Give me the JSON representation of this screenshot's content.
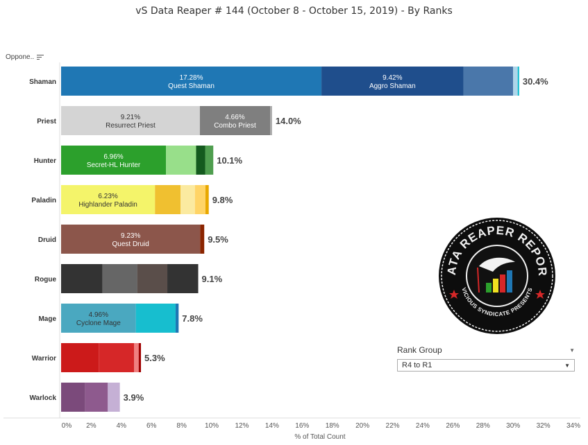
{
  "title": "vS Data Reaper #  144 (October 8 - October 15, 2019) - By Ranks",
  "sort_header": {
    "label": "Oppone..",
    "icon": "sort-icon"
  },
  "filter": {
    "title": "Rank Group",
    "selected": "R4 to R1",
    "icon": "chevron-down-icon"
  },
  "logo": {
    "icon": "data-reaper-report-logo",
    "text_top": "DATA REAPER REPORT",
    "text_bottom": "VICIOUS SYNDICATE PRESENTS"
  },
  "chart_data": {
    "type": "bar",
    "orientation": "horizontal",
    "stacked": true,
    "title": "vS Data Reaper #  144 (October 8 - October 15, 2019) - By Ranks",
    "xlabel": "% of Total Count",
    "ylabel": "",
    "xlim": [
      0,
      34
    ],
    "xticks": [
      "0%",
      "2%",
      "4%",
      "6%",
      "8%",
      "10%",
      "12%",
      "14%",
      "16%",
      "18%",
      "20%",
      "22%",
      "24%",
      "26%",
      "28%",
      "30%",
      "32%",
      "34%"
    ],
    "categories": [
      {
        "name": "Shaman",
        "total": "30.4%",
        "segments": [
          {
            "value": 17.28,
            "color": "#1f77b4",
            "text_color": "#ffffff",
            "pct_label": "17.28%",
            "name_label": "Quest Shaman"
          },
          {
            "value": 9.42,
            "color": "#1f4e8c",
            "text_color": "#ffffff",
            "pct_label": "9.42%",
            "name_label": "Aggro Shaman"
          },
          {
            "value": 3.3,
            "color": "#4a77aa"
          },
          {
            "value": 0.3,
            "color": "#aed6ea"
          },
          {
            "value": 0.1,
            "color": "#17becf"
          }
        ]
      },
      {
        "name": "Priest",
        "total": "14.0%",
        "segments": [
          {
            "value": 9.21,
            "color": "#d4d4d4",
            "text_color": "#333333",
            "pct_label": "9.21%",
            "name_label": "Resurrect Priest"
          },
          {
            "value": 4.66,
            "color": "#7f7f7f",
            "text_color": "#ffffff",
            "pct_label": "4.66%",
            "name_label": "Combo Priest"
          },
          {
            "value": 0.13,
            "color": "#aaaaaa"
          }
        ]
      },
      {
        "name": "Hunter",
        "total": "10.1%",
        "segments": [
          {
            "value": 6.96,
            "color": "#2ca02c",
            "text_color": "#ffffff",
            "pct_label": "6.96%",
            "name_label": "Secret-HL Hunter"
          },
          {
            "value": 2.0,
            "color": "#98df8a"
          },
          {
            "value": 0.6,
            "color": "#145a1e"
          },
          {
            "value": 0.54,
            "color": "#4f9e4f"
          }
        ]
      },
      {
        "name": "Paladin",
        "total": "9.8%",
        "segments": [
          {
            "value": 6.23,
            "color": "#f4f46a",
            "text_color": "#333333",
            "pct_label": "6.23%",
            "name_label": "Highlander Paladin"
          },
          {
            "value": 1.7,
            "color": "#f0c030"
          },
          {
            "value": 0.95,
            "color": "#fbeaa0"
          },
          {
            "value": 0.7,
            "color": "#ffd466"
          },
          {
            "value": 0.22,
            "color": "#e8a800"
          }
        ]
      },
      {
        "name": "Druid",
        "total": "9.5%",
        "segments": [
          {
            "value": 9.23,
            "color": "#8c564b",
            "text_color": "#ffffff",
            "pct_label": "9.23%",
            "name_label": "Quest Druid"
          },
          {
            "value": 0.27,
            "color": "#8b2500"
          }
        ]
      },
      {
        "name": "Rogue",
        "total": "9.1%",
        "segments": [
          {
            "value": 2.75,
            "color": "#333333"
          },
          {
            "value": 2.3,
            "color": "#666666"
          },
          {
            "value": 2.0,
            "color": "#5a4e4a"
          },
          {
            "value": 2.05,
            "color": "#333333"
          }
        ]
      },
      {
        "name": "Mage",
        "total": "7.8%",
        "segments": [
          {
            "value": 4.96,
            "color": "#4aa8c0",
            "text_color": "#333333",
            "pct_label": "4.96%",
            "name_label": "Cyclone Mage"
          },
          {
            "value": 2.64,
            "color": "#17becf"
          },
          {
            "value": 0.2,
            "color": "#1f77b4"
          }
        ]
      },
      {
        "name": "Warrior",
        "total": "5.3%",
        "segments": [
          {
            "value": 2.5,
            "color": "#cc1a1a"
          },
          {
            "value": 2.35,
            "color": "#d62728"
          },
          {
            "value": 0.3,
            "color": "#f08080"
          },
          {
            "value": 0.15,
            "color": "#a00000"
          }
        ]
      },
      {
        "name": "Warlock",
        "total": "3.9%",
        "segments": [
          {
            "value": 1.6,
            "color": "#7b4a7b"
          },
          {
            "value": 1.5,
            "color": "#8e5a8e"
          },
          {
            "value": 0.8,
            "color": "#c5b0d5"
          }
        ]
      }
    ],
    "grid": false,
    "legend": "none"
  }
}
